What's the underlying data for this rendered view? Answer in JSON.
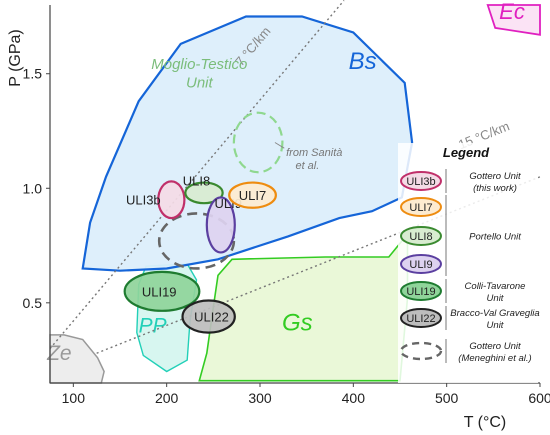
{
  "chart_data": {
    "type": "scatter",
    "xlabel": "T (°C)",
    "ylabel": "P (GPa)",
    "xlim": [
      75,
      600
    ],
    "ylim": [
      0.15,
      1.8
    ],
    "x_ticks": [
      100,
      200,
      300,
      400,
      500,
      600
    ],
    "y_ticks": [
      0.5,
      1.0,
      1.5
    ],
    "grid": false,
    "geotherms": [
      {
        "label": "7 °C/km",
        "points": [
          [
            75,
            0.3
          ],
          [
            390,
            1.82
          ]
        ]
      },
      {
        "label": "15 °C/km",
        "points": [
          [
            125,
            0.28
          ],
          [
            600,
            1.05
          ]
        ]
      }
    ],
    "facies_fields": [
      {
        "label": "Bs",
        "color": "#1565d8",
        "fill": "#dceefb"
      },
      {
        "label": "Gs",
        "color": "#33cc22",
        "fill": "#eaf8d8"
      },
      {
        "label": "PP",
        "color": "#22d0b8",
        "fill": "#d3f5ee"
      },
      {
        "label": "Ze",
        "color": "#999999",
        "fill": "#ededed"
      },
      {
        "label": "Ec",
        "color": "#e020c0",
        "fill": "#fbe3f5"
      }
    ],
    "unit_label": "Moglio-Testico Unit",
    "annotation": "from Sanità et al.",
    "samples": [
      {
        "name": "ULI3b",
        "T": 205,
        "P": 0.95,
        "color": "#c0306a",
        "fill": "#f4dbe6",
        "label": "ULI3b"
      },
      {
        "name": "ULI8",
        "T": 240,
        "P": 0.98,
        "color": "#3a8a30",
        "fill": "#d8ecd0",
        "label": "ULI8"
      },
      {
        "name": "ULI9",
        "T": 258,
        "P": 0.84,
        "color": "#5b3fa0",
        "fill": "#ddd2f0",
        "label": "ULI9"
      },
      {
        "name": "ULI7",
        "T": 292,
        "P": 0.97,
        "color": "#ee8c10",
        "fill": "#fdebd0",
        "label": "ULI7"
      },
      {
        "name": "ULI19",
        "T": 195,
        "P": 0.55,
        "color": "#1e7b30",
        "fill": "#8fd49a",
        "label": "ULI19"
      },
      {
        "name": "ULI22",
        "T": 245,
        "P": 0.44,
        "color": "#222222",
        "fill": "#bdbdbd",
        "label": "ULI22"
      }
    ],
    "sanita_field": {
      "T": 298,
      "P": 1.2
    },
    "meneghini_field": {
      "T": 232,
      "P": 0.77
    },
    "legend": {
      "title": "Legend",
      "placement": "right",
      "groups": [
        {
          "items": [
            "ULI3b"
          ],
          "text": [
            "Gottero Unit",
            "(this work)"
          ]
        },
        {
          "items": [
            "ULI7",
            "ULI8",
            "ULI9"
          ],
          "text": [
            "Portello Unit"
          ]
        },
        {
          "items": [
            "ULI19"
          ],
          "text": [
            "Colli-Tavarone",
            "Unit"
          ]
        },
        {
          "items": [
            "ULI22"
          ],
          "text": [
            "Bracco-Val Graveglia",
            "Unit"
          ]
        },
        {
          "items": [
            "dashed"
          ],
          "text": [
            "Gottero Unit",
            "(Meneghini et al.)"
          ]
        }
      ]
    }
  }
}
